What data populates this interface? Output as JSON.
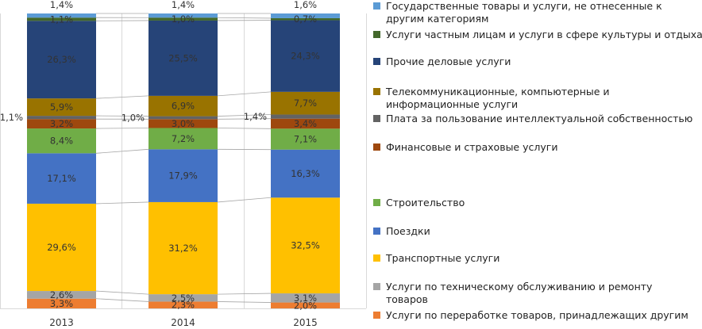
{
  "chart_data": {
    "type": "bar",
    "stacked": true,
    "normalized": true,
    "categories": [
      "2013",
      "2014",
      "2015"
    ],
    "series": [
      {
        "name": "Услуги по переработке товаров, принадлежащих другим",
        "color": "#ED7D31",
        "values": [
          3.3,
          2.3,
          2.0
        ],
        "labels": [
          "3,3%",
          "2,3%",
          "2,0%"
        ]
      },
      {
        "name": "Услуги по техническому обслуживанию и ремонту товаров",
        "color": "#A5A5A5",
        "values": [
          2.6,
          2.5,
          3.1
        ],
        "labels": [
          "2,6%",
          "2,5%",
          "3,1%"
        ]
      },
      {
        "name": "Транспортные услуги",
        "color": "#FFC000",
        "values": [
          29.6,
          31.2,
          32.5
        ],
        "labels": [
          "29,6%",
          "31,2%",
          "32,5%"
        ]
      },
      {
        "name": "Поездки",
        "color": "#4472C4",
        "values": [
          17.1,
          17.9,
          16.3
        ],
        "labels": [
          "17,1%",
          "17,9%",
          "16,3%"
        ]
      },
      {
        "name": "Строительство",
        "color": "#70AD47",
        "values": [
          8.4,
          7.2,
          7.1
        ],
        "labels": [
          "8,4%",
          "7,2%",
          "7,1%"
        ]
      },
      {
        "name": "Финансовые и страховые  услуги",
        "color": "#9E480E",
        "values": [
          3.2,
          3.0,
          3.4
        ],
        "labels": [
          "3,2%",
          "3,0%",
          "3,4%"
        ]
      },
      {
        "name": "Плата за пользование интеллектуальной собственностью",
        "color": "#636363",
        "values": [
          1.1,
          1.0,
          1.4
        ],
        "labels": [
          "1,1%",
          "1,0%",
          "1,4%"
        ]
      },
      {
        "name": "Телекоммуникационные, компьютерные и информационные услуги",
        "color": "#997300",
        "values": [
          5.9,
          6.9,
          7.7
        ],
        "labels": [
          "5,9%",
          "6,9%",
          "7,7%"
        ]
      },
      {
        "name": "Прочие деловые услуги",
        "color": "#264478",
        "values": [
          26.3,
          25.5,
          24.3
        ],
        "labels": [
          "26,3%",
          "25,5%",
          "24,3%"
        ]
      },
      {
        "name": "Услуги частным лицам и услуги в сфере культуры и отдыха",
        "color": "#43682B",
        "values": [
          1.1,
          1.0,
          0.7
        ],
        "labels": [
          "1,1%",
          "1,0%",
          "0,7%"
        ]
      },
      {
        "name": "Государственные товары и услуги, не отнесенные к другим категориям",
        "color": "#5B9BD5",
        "values": [
          1.4,
          1.4,
          1.6
        ],
        "labels": [
          "1,4%",
          "1,4%",
          "1,6%"
        ]
      }
    ],
    "legend": [
      {
        "series": 10,
        "lines": [
          "Государственные товары и услуги, не отнесенные к",
          "другим категориям"
        ]
      },
      {
        "series": 9,
        "lines": [
          "Услуги частным лицам и услуги в сфере культуры и отдыха"
        ]
      },
      {
        "series": 8,
        "lines": [
          "Прочие деловые услуги"
        ]
      },
      {
        "series": 7,
        "lines": [
          "Телекоммуникационные, компьютерные и",
          "информационные услуги"
        ]
      },
      {
        "series": 6,
        "lines": [
          "Плата за пользование интеллектуальной собственностью"
        ]
      },
      {
        "series": 5,
        "lines": [
          "Финансовые и страховые  услуги"
        ]
      },
      {
        "series": 4,
        "lines": [
          "Строительство"
        ]
      },
      {
        "series": 3,
        "lines": [
          "Поездки"
        ]
      },
      {
        "series": 2,
        "lines": [
          "Транспортные услуги"
        ]
      },
      {
        "series": 1,
        "lines": [
          "Услуги по техническому обслуживанию и ремонту",
          "товаров"
        ]
      },
      {
        "series": 0,
        "lines": [
          "Услуги по переработке товаров, принадлежащих другим"
        ]
      }
    ],
    "legend_position": "right",
    "xlabel": "",
    "ylabel": ""
  }
}
